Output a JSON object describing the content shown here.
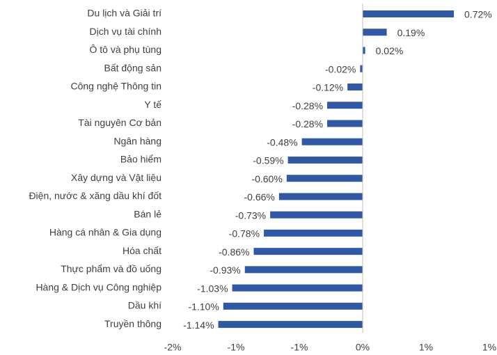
{
  "chart_data": {
    "type": "hbar",
    "categories": [
      "Du lịch và Giải trí",
      "Dịch vụ tài chính",
      "Ô tô và phụ tùng",
      "Bất động sản",
      "Công nghệ Thông tin",
      "Y tế",
      "Tài nguyên Cơ bản",
      "Ngân hàng",
      "Bảo hiểm",
      "Xây dựng và Vật liệu",
      "Điện, nước & xăng dầu khí đốt",
      "Bán lẻ",
      "Hàng cá nhân & Gia dụng",
      "Hóa chất",
      "Thực phẩm và đồ uống",
      "Hàng & Dịch vụ Công nghiệp",
      "Dầu khí",
      "Truyền thông"
    ],
    "values": [
      0.72,
      0.19,
      0.02,
      -0.02,
      -0.12,
      -0.28,
      -0.28,
      -0.48,
      -0.59,
      -0.6,
      -0.66,
      -0.73,
      -0.78,
      -0.86,
      -0.93,
      -1.03,
      -1.1,
      -1.14
    ],
    "value_labels": [
      "0.72%",
      "0.19%",
      "0.02%",
      "-0.02%",
      "-0.12%",
      "-0.28%",
      "-0.28%",
      "-0.48%",
      "-0.59%",
      "-0.60%",
      "-0.66%",
      "-0.73%",
      "-0.78%",
      "-0.86%",
      "-0.93%",
      "-1.03%",
      "-1.10%",
      "-1.14%"
    ],
    "color": "#2f58a6",
    "xlim": [
      -1.5,
      1.0
    ],
    "xticks": [
      {
        "value": -1.5,
        "label": "-2%"
      },
      {
        "value": -1.0,
        "label": "-1%"
      },
      {
        "value": -0.5,
        "label": "-1%"
      },
      {
        "value": 0,
        "label": "0%"
      },
      {
        "value": 0.5,
        "label": "1%"
      },
      {
        "value": 1.0,
        "label": "1%"
      }
    ],
    "grid": false
  }
}
